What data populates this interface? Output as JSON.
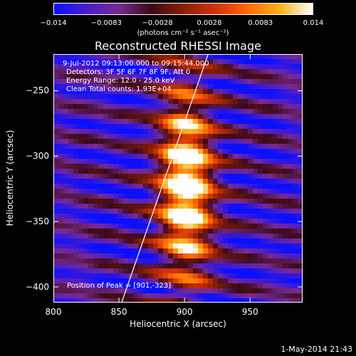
{
  "colorbar": {
    "tick_labels": [
      "−0.014",
      "−0.0083",
      "−0.0028",
      "0.0028",
      "0.0083",
      "0.014"
    ],
    "tick_values": [
      -0.014,
      -0.0083,
      -0.0028,
      0.0028,
      0.0083,
      0.014
    ],
    "units": "(photons cm⁻² s⁻¹ asec⁻²)",
    "range": [
      -0.014,
      0.014
    ],
    "colors": [
      "#0a10ff",
      "#4b1ccc",
      "#7a2a8e",
      "#3a0a18",
      "#8a1f05",
      "#d2320a",
      "#ff6a00",
      "#ffb21a",
      "#ffffff"
    ]
  },
  "chart_data": {
    "type": "heatmap",
    "title": "Reconstructed RHESSI Image",
    "xlabel": "Heliocentric X (arcsec)",
    "ylabel": "Heliocentric Y (arcsec)",
    "xlim": [
      800,
      990
    ],
    "ylim": [
      -412,
      -222
    ],
    "x_ticks": [
      800,
      850,
      900,
      950
    ],
    "y_ticks": [
      -250,
      -300,
      -350,
      -400
    ],
    "x_tick_labels": [
      "800",
      "850",
      "900",
      "950"
    ],
    "y_tick_labels": [
      "−250",
      "−300",
      "−350",
      "−400"
    ],
    "peak": [
      901,
      -323
    ],
    "limb_line": {
      "x": [
        852,
        918
      ],
      "y": [
        -412,
        -222
      ]
    },
    "annotations": {
      "time_range": "9-Jul-2012 09:13:00.000 to 09:15:44.000",
      "detectors": "Detectors: 3F 5F 6F 7F 8F 9F, Att 0",
      "energy": "Energy Range: 12.0 - 25.0 keV",
      "clean": "Clean    Total counts: 1.93E+04",
      "peak_text": "Position of Peak = [901,-323]"
    }
  },
  "footer": {
    "timestamp": "1-May-2014 21:43"
  }
}
